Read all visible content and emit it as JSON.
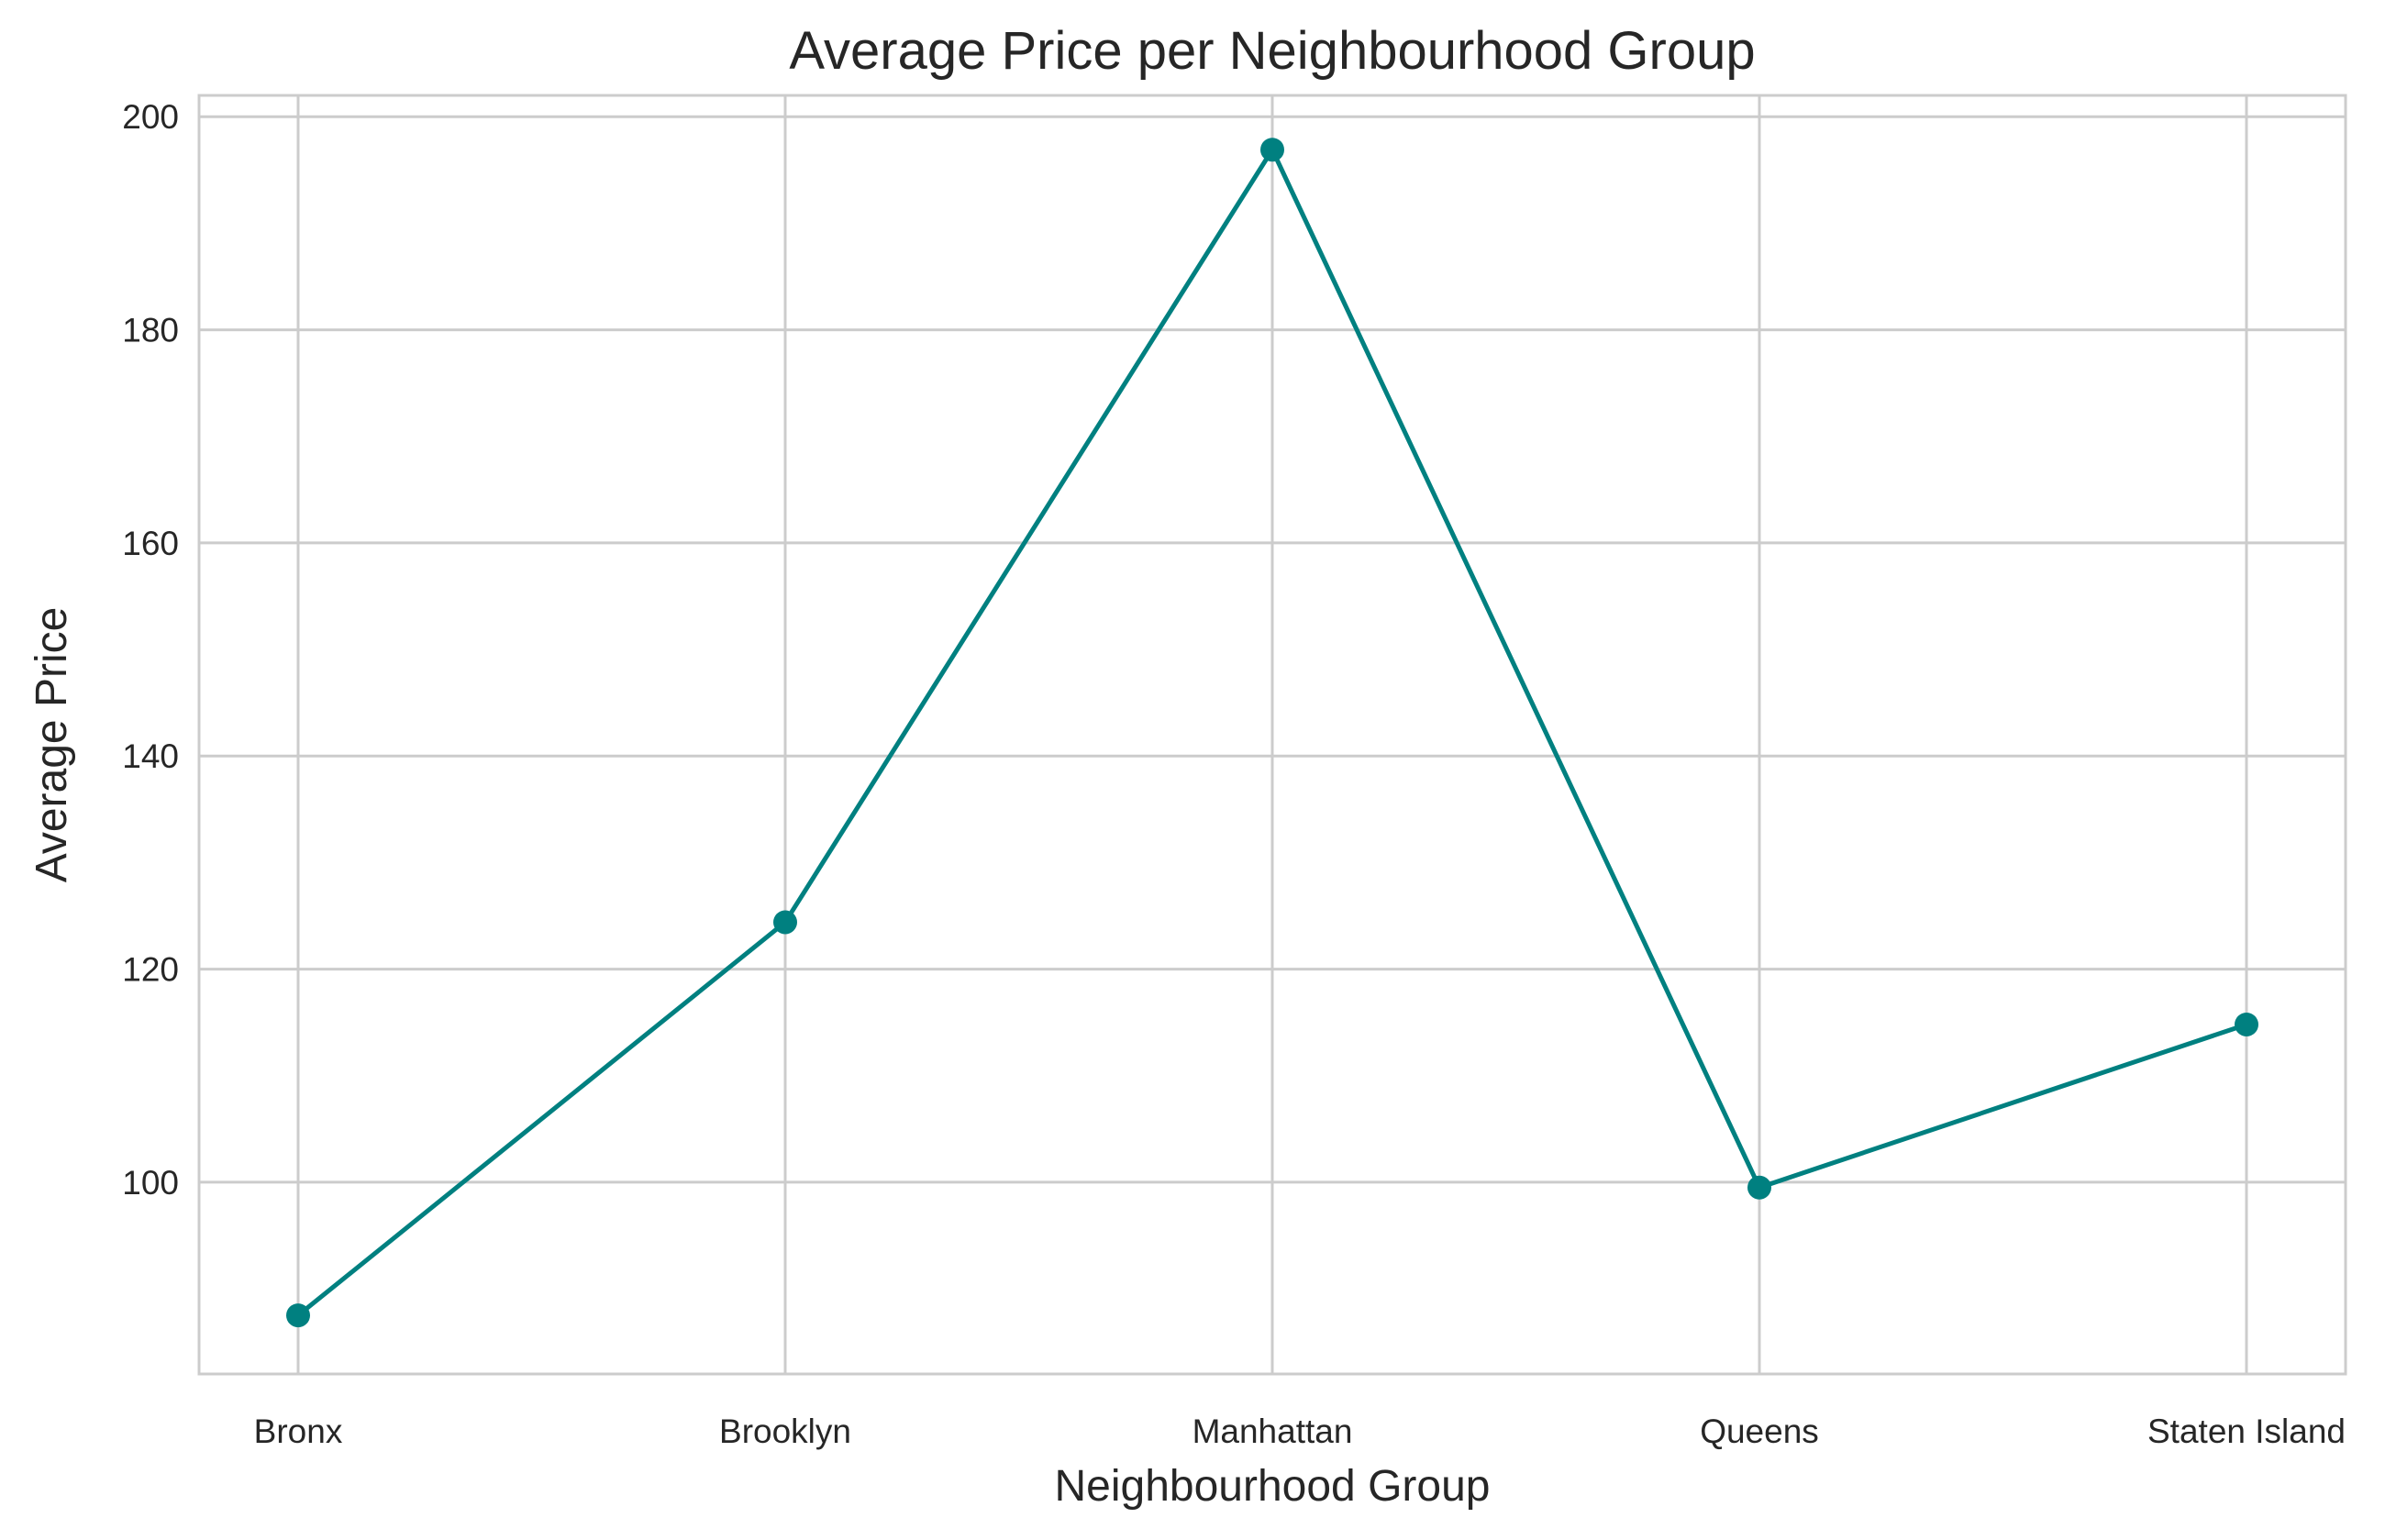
{
  "chart_data": {
    "type": "line",
    "title": "Average Price per Neighbourhood Group",
    "xlabel": "Neighbourhood Group",
    "ylabel": "Average Price",
    "categories": [
      "Bronx",
      "Brooklyn",
      "Manhattan",
      "Queens",
      "Staten Island"
    ],
    "series": [
      {
        "values": [
          87.5,
          124.4,
          196.9,
          99.5,
          114.8
        ]
      }
    ],
    "ylim": [
      82,
      202
    ],
    "yticks": [
      100,
      120,
      140,
      160,
      180,
      200
    ],
    "grid": true,
    "legend": "none",
    "colors": {
      "line": "#008080",
      "grid": "#cccccc",
      "spine": "#cccccc",
      "text": "#262626",
      "background": "#ffffff"
    }
  }
}
